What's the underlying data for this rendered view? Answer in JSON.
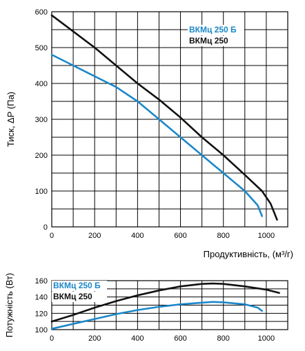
{
  "chart_data": [
    {
      "type": "line",
      "ylabel": "Тиск, ΔP (Па)",
      "xlabel": "Продуктивність, (м³/г)",
      "xlim": [
        0,
        1100
      ],
      "ylim": [
        0,
        600
      ],
      "x_ticks": [
        "0",
        "200",
        "400",
        "600",
        "800",
        "1000"
      ],
      "y_ticks": [
        "0",
        "100",
        "200",
        "300",
        "400",
        "500",
        "600"
      ],
      "grid": true,
      "legend": "top-right",
      "series": [
        {
          "name": "ВКМц 250 Б",
          "color": "#1a87c9",
          "x": [
            0,
            100,
            200,
            300,
            400,
            500,
            600,
            700,
            800,
            900,
            960,
            980
          ],
          "y": [
            480,
            450,
            420,
            390,
            350,
            300,
            250,
            200,
            150,
            100,
            60,
            30
          ]
        },
        {
          "name": "ВКМц 250",
          "color": "#111111",
          "x": [
            0,
            100,
            200,
            300,
            400,
            500,
            600,
            700,
            800,
            900,
            980,
            1020,
            1050
          ],
          "y": [
            590,
            545,
            500,
            450,
            400,
            355,
            305,
            250,
            200,
            145,
            100,
            65,
            20
          ]
        }
      ]
    },
    {
      "type": "line",
      "ylabel": "Потужність (Вт)",
      "xlim": [
        0,
        1100
      ],
      "ylim": [
        100,
        160
      ],
      "x_ticks": [
        "0",
        "200",
        "400",
        "600",
        "800",
        "1000"
      ],
      "y_ticks": [
        "100",
        "120",
        "140",
        "160"
      ],
      "grid": true,
      "legend": "top-left",
      "series": [
        {
          "name": "ВКМц 250 Б",
          "color": "#1a87c9",
          "x": [
            0,
            100,
            200,
            300,
            400,
            500,
            600,
            700,
            750,
            800,
            900,
            960,
            980
          ],
          "y": [
            101,
            107,
            113,
            119,
            124,
            128,
            131,
            133,
            134,
            133.5,
            131,
            127,
            123
          ]
        },
        {
          "name": "ВКМц 250",
          "color": "#111111",
          "x": [
            0,
            100,
            200,
            300,
            400,
            500,
            600,
            700,
            750,
            800,
            900,
            1000,
            1060
          ],
          "y": [
            110,
            118,
            127,
            135,
            142,
            148,
            153,
            156,
            156.5,
            156,
            153,
            149,
            145
          ]
        }
      ]
    }
  ]
}
